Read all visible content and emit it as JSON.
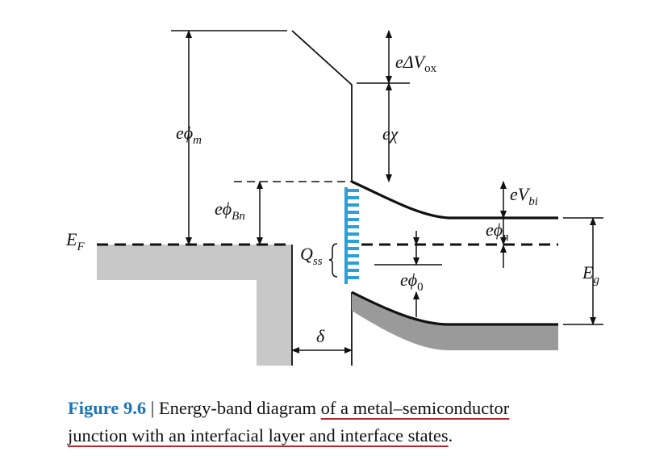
{
  "labels": {
    "delta_vox": {
      "base": "eΔV",
      "sub": "ox"
    },
    "phi_m": {
      "base": "eϕ",
      "sub": "m"
    },
    "chi": {
      "base": "eχ"
    },
    "phi_bn": {
      "base": "eϕ",
      "sub": "Bn"
    },
    "vbi": {
      "base": "eV",
      "sub": "bi"
    },
    "phi_n": {
      "base": "eϕ",
      "sub": "n"
    },
    "ef": {
      "base": "E",
      "sub": "F"
    },
    "qss": {
      "base": "Q",
      "sub": "ss"
    },
    "phi_0": {
      "base": "eϕ",
      "sub": "0"
    },
    "eg": {
      "base": "E",
      "sub": "g"
    },
    "delta": "δ"
  },
  "caption": {
    "figure": "Figure 9.6",
    "separator": " | ",
    "text_part1": "Energy-band diagram ",
    "text_underlined_1": "of a metal–semiconductor",
    "text_underlined_2": "junction with an interfacial layer and interface states",
    "text_end": "."
  },
  "colors": {
    "metal_fill": "#c8c8c8",
    "valence_fill": "#9a9a9a",
    "interface_states": "#2a9fd8",
    "figure_label": "#1a74b8",
    "underline": "#b0282a"
  }
}
